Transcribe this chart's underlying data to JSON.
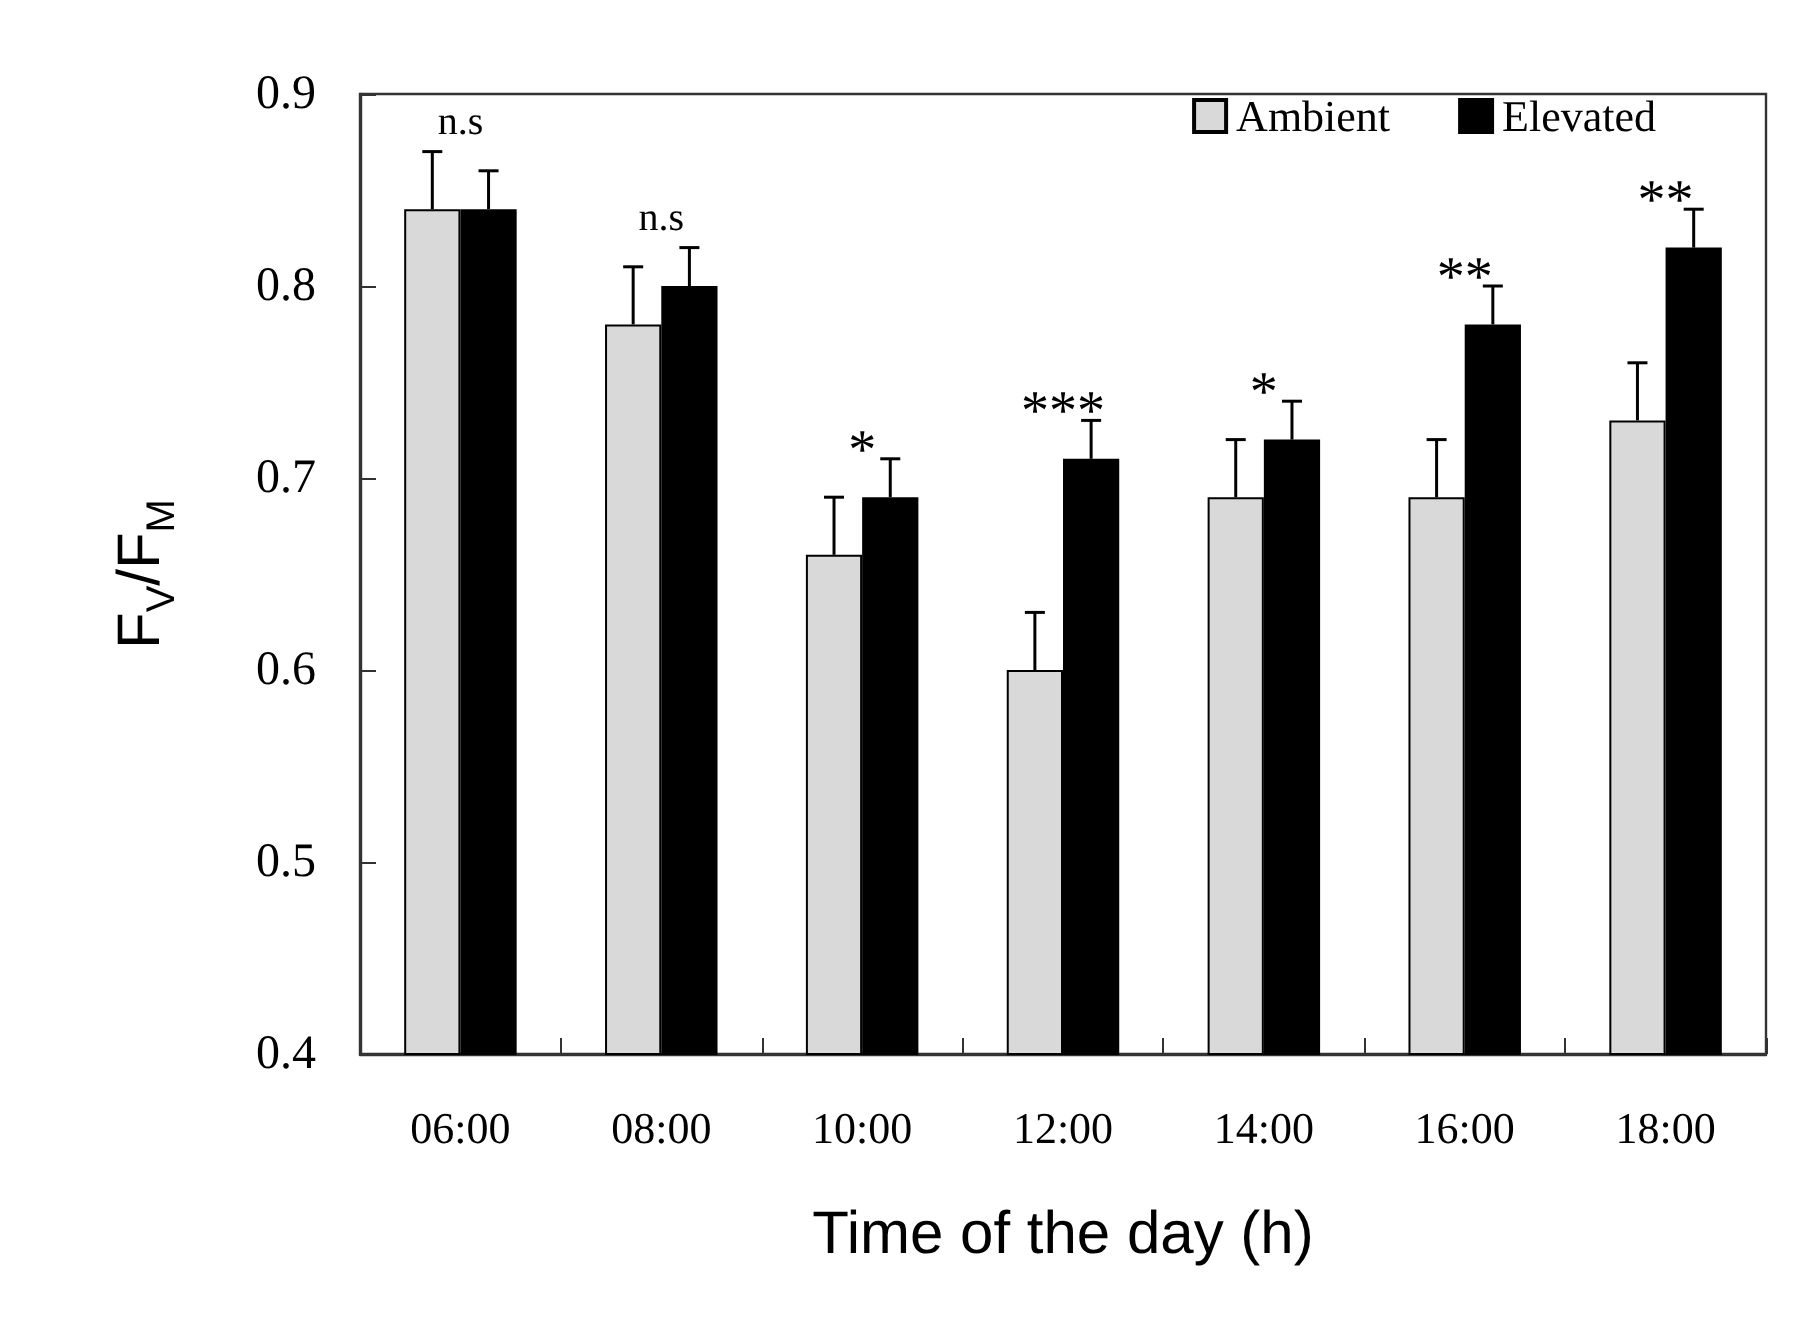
{
  "chart_data": {
    "type": "bar",
    "xlabel": "Time of the day (h)",
    "ylabel": "F$_{V}$/F$_{M}$",
    "categories": [
      "06:00",
      "08:00",
      "10:00",
      "12:00",
      "14:00",
      "16:00",
      "18:00"
    ],
    "series": [
      {
        "name": "Ambient",
        "color": "#d9d9d9",
        "values": [
          0.84,
          0.78,
          0.66,
          0.6,
          0.69,
          0.69,
          0.73
        ],
        "errors": [
          0.03,
          0.03,
          0.03,
          0.03,
          0.03,
          0.03,
          0.03
        ]
      },
      {
        "name": "Elevated",
        "color": "#000000",
        "values": [
          0.84,
          0.8,
          0.69,
          0.71,
          0.72,
          0.78,
          0.82
        ],
        "errors": [
          0.02,
          0.02,
          0.02,
          0.02,
          0.02,
          0.02,
          0.02
        ]
      }
    ],
    "ylim": [
      0.4,
      0.9
    ],
    "yticks": [
      0.4,
      0.5,
      0.6,
      0.7,
      0.8,
      0.9
    ],
    "grid": false,
    "legend": "top right",
    "annotations": [
      "n.s",
      "n.s",
      "*",
      "***",
      "*",
      "**",
      "**"
    ]
  }
}
